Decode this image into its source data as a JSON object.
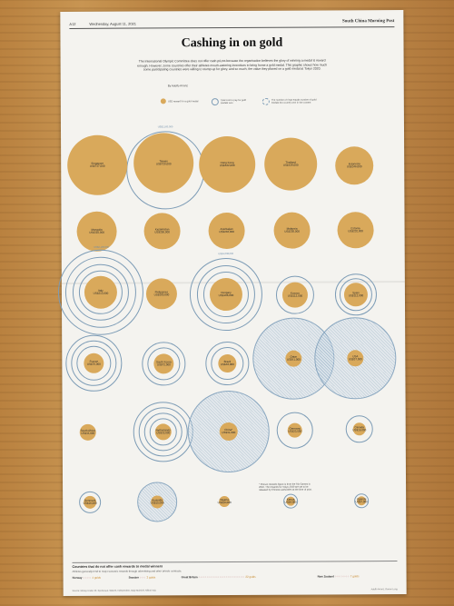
{
  "masthead": {
    "page": "A12",
    "date": "Wednesday, August 11, 2021",
    "brand": "South China Morning Post"
  },
  "headline": "Cashing in on gold",
  "standfirst": "The International Olympic Committee does not offer cash prizes because the organisation believes the glory of winning a medal is reward enough. However, some countries offer their athletes mouth-watering incentives to bring home a gold medal. This graphic shows how much some participating countries were willing to stump up for glory, and so much, the value they placed on a gold medal at Tokyo 2020.",
  "byline": "By Adolfo Arranz",
  "legend": {
    "gold_label": "USD reward for a gold medal",
    "ring_label": "Total cost to pay for gold medals won",
    "dots_label": "The number of rings equals number of gold medals the country won in the contest"
  },
  "countries": [
    {
      "name": "Singapore",
      "amount": "US$737,000"
    },
    {
      "name": "Taiwan",
      "amount": "US$720,000",
      "total": "US$2,160,000"
    },
    {
      "name": "Hong Kong",
      "amount": "US$642,000"
    },
    {
      "name": "Thailand",
      "amount": "US$428,000"
    },
    {
      "name": "Indonesia",
      "amount": "US$346,000"
    },
    {
      "name": "Mongolia",
      "amount": "US$310,000"
    },
    {
      "name": "Kazakhstan",
      "amount": "US$250,000"
    },
    {
      "name": "Azerbaijan",
      "amount": "US$248,000"
    },
    {
      "name": "Malaysia",
      "amount": "US$236,000"
    },
    {
      "name": "Estonia",
      "amount": "US$232,000"
    },
    {
      "name": "Italy",
      "amount": "US$213,000",
      "total": "US$2,130,000"
    },
    {
      "name": "Philippines",
      "amount": "US$200,000"
    },
    {
      "name": "Hungary",
      "amount": "US$168,000",
      "total": "US$1,008,000"
    },
    {
      "name": "Kosovo",
      "amount": "US$112,000"
    },
    {
      "name": "Spain",
      "amount": "US$112,000"
    },
    {
      "name": "France",
      "amount": "US$76,000"
    },
    {
      "name": "South Korea",
      "amount": "US$72,000"
    },
    {
      "name": "Brazil",
      "amount": "US$48,000"
    },
    {
      "name": "Qatar",
      "amount": "US$41,000"
    },
    {
      "name": "USA",
      "amount": "US$37,500"
    },
    {
      "name": "South Africa",
      "amount": "US$34,000"
    },
    {
      "name": "Netherlands",
      "amount": "US$33,000"
    },
    {
      "name": "China*",
      "amount": "US$31,000"
    },
    {
      "name": "Germany",
      "amount": "US$23,500"
    },
    {
      "name": "Canada",
      "amount": "US$16,000"
    },
    {
      "name": "Denmark",
      "amount": "US$16,000"
    },
    {
      "name": "Australia",
      "amount": "US$15,000"
    },
    {
      "name": "Nigeria",
      "amount": "US$10,000"
    },
    {
      "name": "Kenya",
      "amount": "US$9,000"
    },
    {
      "name": "Uganda",
      "amount": "US$7,000"
    }
  ],
  "note": "* China's rewards figure is from the Rio Games in 2016. The rewards for Tokyo 2020 are yet to be released by Chinese authorities at the time of print.",
  "footer": {
    "title": "Countries that do not offer cash rewards to medal winners",
    "subtitle": "Athletes generally tend to reap economic rewards through advertising and other private contracts.",
    "items": [
      {
        "country": "Norway",
        "dots": "○○○○",
        "golds": "4 golds"
      },
      {
        "country": "Sweden",
        "dots": "○○○",
        "golds": "3 golds"
      },
      {
        "country": "Great Britain",
        "dots": "○○○○○○○○○○○○○○○○○○○○○○",
        "golds": "22 golds"
      },
      {
        "country": "New Zealand",
        "dots": "○○○○○○○",
        "golds": "7 golds"
      }
    ],
    "source": "Source: Money Under 30, Sportsnaut, WikiVS, Independent, Daily Mainichi, Nikkei Asia",
    "credit": "Adolfo Arranz, Darren Long"
  }
}
